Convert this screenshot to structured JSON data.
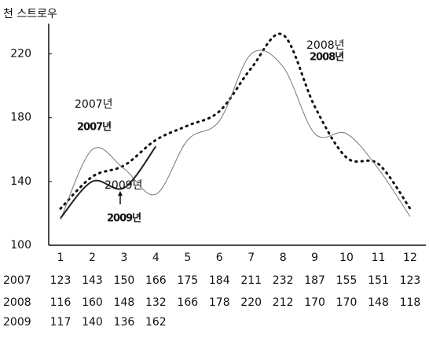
{
  "chart_data": {
    "type": "line",
    "y_label": "천 스트로우",
    "categories": [
      "1",
      "2",
      "3",
      "4",
      "5",
      "6",
      "7",
      "8",
      "9",
      "10",
      "11",
      "12"
    ],
    "series": [
      {
        "name": "2007년",
        "row_label": "2007",
        "color": "#111111",
        "style": "dotted",
        "values": [
          123,
          143,
          150,
          166,
          175,
          184,
          211,
          232,
          187,
          155,
          151,
          123
        ]
      },
      {
        "name": "2008년",
        "row_label": "2008",
        "color": "#777777",
        "style": "thin",
        "values": [
          116,
          160,
          148,
          132,
          166,
          178,
          220,
          212,
          170,
          170,
          148,
          118
        ]
      },
      {
        "name": "2009년",
        "row_label": "2009",
        "color": "#222222",
        "style": "thick",
        "values": [
          117,
          140,
          136,
          162,
          null,
          null,
          null,
          null,
          null,
          null,
          null,
          null
        ]
      }
    ],
    "ylim": [
      100,
      240
    ],
    "yticks": [
      100,
      140,
      180,
      220
    ]
  }
}
